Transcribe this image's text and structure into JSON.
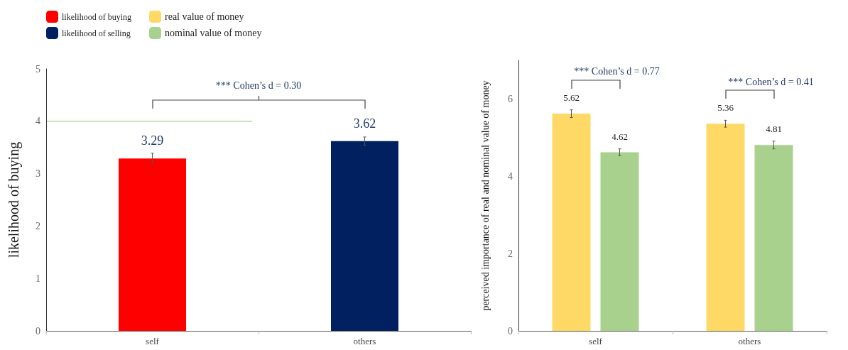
{
  "chart_data": [
    {
      "type": "bar",
      "categories": [
        "self",
        "others"
      ],
      "stacked": true,
      "series": [
        {
          "name": "likelihood of buying",
          "color": "#ff0000",
          "values": [
            3.29,
            null
          ],
          "errors": [
            0.1,
            null
          ]
        },
        {
          "name": "likelihood of selling",
          "color": "#002060",
          "values": [
            null,
            3.62
          ],
          "errors": [
            null,
            0.08
          ]
        }
      ],
      "ylabel": "likelihood of buying",
      "ylim": [
        0,
        5
      ],
      "yticks": [
        0,
        1,
        2,
        3,
        4,
        5
      ],
      "grid": false,
      "legend": "top left",
      "data_labels": true,
      "ref_lines": [
        {
          "axis": "y",
          "value": 4,
          "color": "#a9d18e"
        }
      ],
      "annotations": [
        "*** Cohen’s d = 0.30"
      ]
    },
    {
      "type": "bar",
      "categories": [
        "self",
        "others"
      ],
      "series": [
        {
          "name": "real value of money",
          "color": "#ffd966",
          "values": [
            5.62,
            5.36
          ],
          "errors": [
            0.1,
            0.09
          ]
        },
        {
          "name": "nominal value of money",
          "color": "#a9d18e",
          "values": [
            4.62,
            4.81
          ],
          "errors": [
            0.09,
            0.1
          ]
        }
      ],
      "ylabel": "perceived importance of real and nominal value of money",
      "ylim": [
        0,
        7
      ],
      "yticks": [
        0,
        2,
        4,
        6
      ],
      "grid": false,
      "legend": "top left",
      "data_labels": true,
      "annotations": [
        "*** Cohen’s d = 0.77",
        "*** Cohen’s d = 0.41"
      ]
    }
  ]
}
